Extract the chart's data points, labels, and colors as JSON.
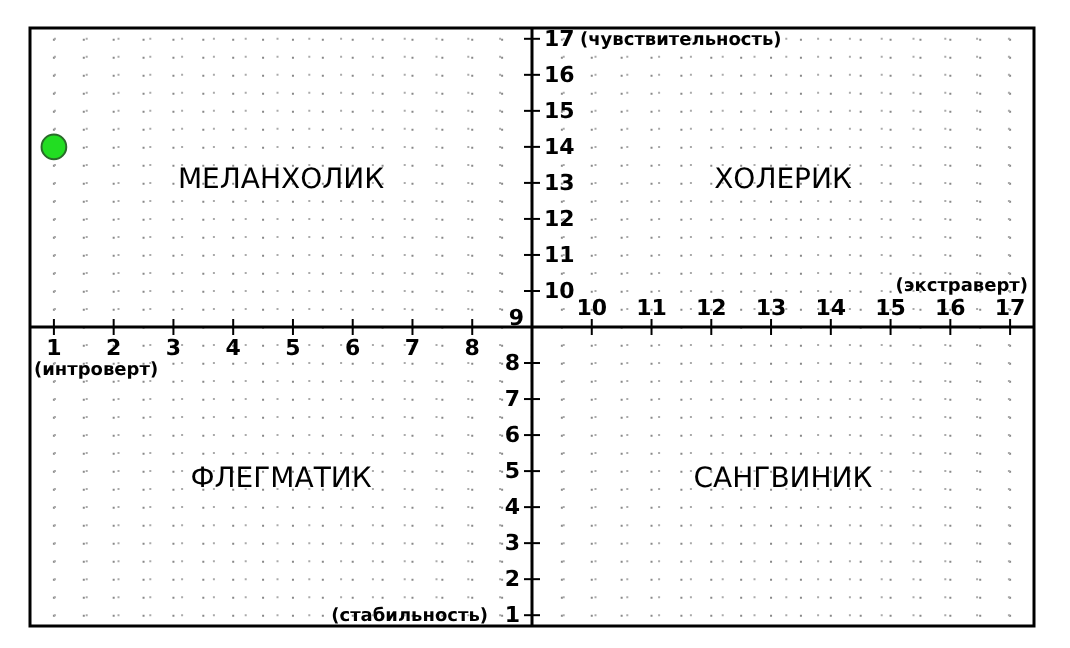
{
  "chart_data": {
    "type": "scatter",
    "xlabel": "(интроверт)",
    "x2label": "(экстраверт)",
    "ylabel": "(стабильность)",
    "y2label": "(чувствительность)",
    "annotations": [
      "МЕЛАНХОЛИК",
      "ХОЛЕРИК",
      "ФЛЕГМАТИК",
      "САНГВИНИК"
    ],
    "x": [
      1
    ],
    "series": [
      {
        "color": "#22dd22",
        "values": [
          14
        ]
      }
    ],
    "marker": "circle",
    "xlim": [
      0.6,
      17.4
    ],
    "ylim": [
      0.7,
      17.3
    ],
    "xticks": [
      1,
      2,
      3,
      4,
      5,
      6,
      7,
      8,
      {
        "value": 9,
        "label": null
      }
    ],
    "x2lim": [
      0.6,
      17.4
    ],
    "x2ticks": [
      10,
      11,
      12,
      13,
      14,
      15,
      16,
      17
    ],
    "yticks": [
      1,
      2,
      3,
      4,
      5,
      6,
      7,
      8,
      9
    ],
    "y2lim": [
      0.7,
      17.3
    ],
    "y2ticks": [
      10,
      11,
      12,
      13,
      14,
      15,
      16,
      17
    ],
    "grid": true
  }
}
